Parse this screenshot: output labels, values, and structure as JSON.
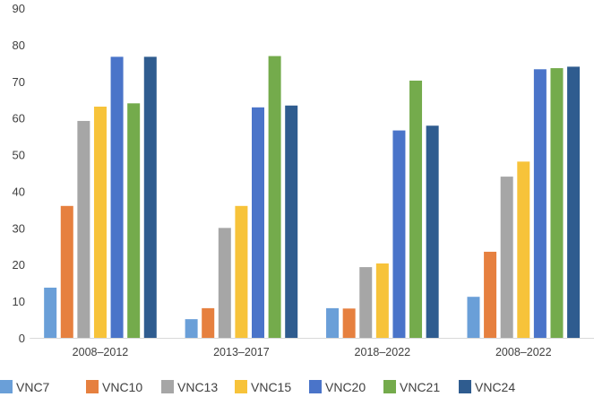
{
  "chart_data": {
    "type": "bar",
    "title": "",
    "xlabel": "",
    "ylabel": "",
    "categories": [
      "2008–2012",
      "2013–2017",
      "2018–2022",
      "2008–2022"
    ],
    "series": [
      {
        "name": "VNC7",
        "color": "#6a9fd8",
        "values": [
          13.7,
          5.1,
          8.1,
          11.2
        ]
      },
      {
        "name": "VNC10",
        "color": "#e6803f",
        "values": [
          36.0,
          8.1,
          8.0,
          23.5
        ]
      },
      {
        "name": "VNC13",
        "color": "#a6a6a6",
        "values": [
          59.2,
          30.0,
          19.3,
          44.0
        ]
      },
      {
        "name": "VNC15",
        "color": "#f7c33a",
        "values": [
          63.1,
          36.0,
          20.3,
          48.1
        ]
      },
      {
        "name": "VNC20",
        "color": "#4a74c9",
        "values": [
          76.7,
          62.9,
          56.6,
          73.3
        ]
      },
      {
        "name": "VNC21",
        "color": "#74ab4c",
        "values": [
          64.0,
          76.9,
          70.2,
          73.6
        ]
      },
      {
        "name": "VNC24",
        "color": "#2f5c8f",
        "values": [
          76.7,
          63.4,
          57.9,
          74.0
        ]
      }
    ],
    "ylim": [
      0,
      90
    ],
    "yticks": [
      0,
      10,
      20,
      30,
      40,
      50,
      60,
      70,
      80,
      90
    ],
    "grid": false,
    "legend": "bottom"
  }
}
